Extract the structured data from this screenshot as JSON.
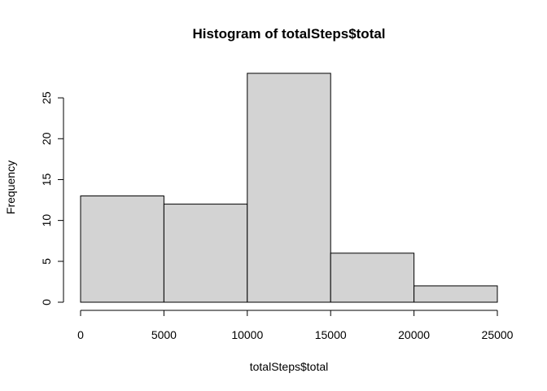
{
  "chart_data": {
    "type": "bar",
    "title": "Histogram of totalSteps$total",
    "xlabel": "totalSteps$total",
    "ylabel": "Frequency",
    "bins": [
      {
        "from": 0,
        "to": 5000,
        "count": 13
      },
      {
        "from": 5000,
        "to": 10000,
        "count": 12
      },
      {
        "from": 10000,
        "to": 15000,
        "count": 28
      },
      {
        "from": 15000,
        "to": 20000,
        "count": 6
      },
      {
        "from": 20000,
        "to": 25000,
        "count": 2
      }
    ],
    "xlim": [
      0,
      25000
    ],
    "ylim": [
      0,
      28
    ],
    "x_ticks": [
      "0",
      "5000",
      "10000",
      "15000",
      "20000",
      "25000"
    ],
    "y_ticks": [
      "0",
      "5",
      "10",
      "15",
      "20",
      "25"
    ],
    "bar_color": "#d3d3d3",
    "grid": false,
    "legend": "none"
  }
}
